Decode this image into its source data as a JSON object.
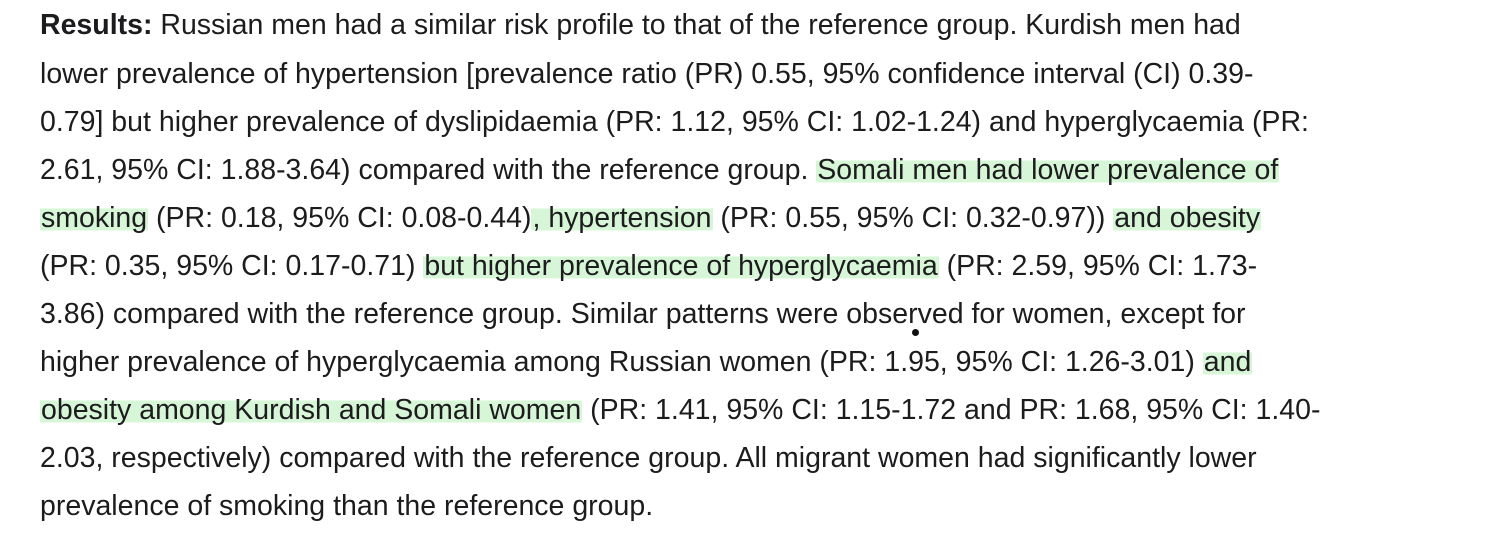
{
  "document": {
    "lines": [
      [
        {
          "text": "Results:",
          "style": "bold"
        },
        {
          "text": " Russian men had a similar risk profile to that of the reference group. Kurdish men had"
        }
      ],
      [
        {
          "text": "lower prevalence of hypertension [prevalence ratio (PR) 0.55, 95% confidence interval (CI) 0.39-"
        }
      ],
      [
        {
          "text": "0.79] but higher prevalence of dyslipidaemia (PR: 1.12, 95% CI: 1.02-1.24) and hyperglycaemia (PR:"
        }
      ],
      [
        {
          "text": "2.61, 95% CI: 1.88-3.64) compared with the reference group. "
        },
        {
          "text": "Somali men had lower prevalence of",
          "style": "highlight"
        }
      ],
      [
        {
          "text": "smoking",
          "style": "highlight"
        },
        {
          "text": " (PR: 0.18, 95% CI: 0.08-0.44)"
        },
        {
          "text": ", hypertension",
          "style": "highlight"
        },
        {
          "text": " (PR: 0.55, 95% CI: 0.32-0.97)) "
        },
        {
          "text": "and obesity",
          "style": "highlight"
        }
      ],
      [
        {
          "text": "(PR: 0.35, 95% CI: 0.17-0.71) "
        },
        {
          "text": "but higher prevalence of hyperglycaemia",
          "style": "highlight"
        },
        {
          "text": " (PR: 2.59, 95% CI: 1.73-"
        }
      ],
      [
        {
          "text": "3.86) compared with the reference group. Similar patterns were observed for women, except for"
        }
      ],
      [
        {
          "text": "higher prevalence of hyperglycaemia among Russian women (PR: 1.95, 95% CI: 1.26-3.01) "
        },
        {
          "text": "and",
          "style": "highlight"
        }
      ],
      [
        {
          "text": "obesity among Kurdish and Somali women",
          "style": "highlight"
        },
        {
          "text": " (PR: 1.41, 95% CI: 1.15-1.72 and PR: 1.68, 95% CI: 1.40-"
        }
      ],
      [
        {
          "text": "2.03, respectively) compared with the reference group. All migrant women had significantly lower"
        }
      ],
      [
        {
          "text": "prevalence of smoking than the reference group."
        }
      ]
    ]
  }
}
